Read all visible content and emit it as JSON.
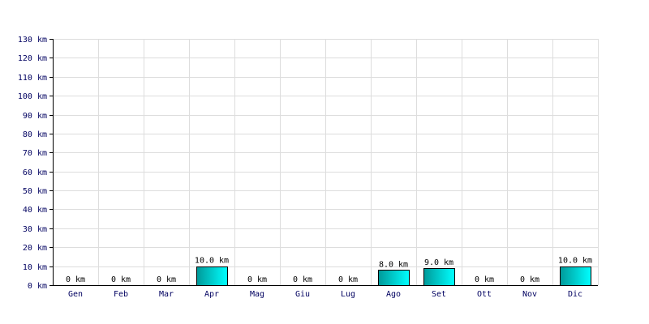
{
  "chart_data": {
    "type": "bar",
    "categories": [
      "Gen",
      "Feb",
      "Mar",
      "Apr",
      "Mag",
      "Giu",
      "Lug",
      "Ago",
      "Set",
      "Ott",
      "Nov",
      "Dic"
    ],
    "values": [
      0,
      0,
      0,
      10.0,
      0,
      0,
      0,
      8.0,
      9.0,
      0,
      0,
      10.0
    ],
    "data_labels": [
      "0 km",
      "0 km",
      "0 km",
      "10.0 km",
      "0 km",
      "0 km",
      "0 km",
      "8.0 km",
      "9.0 km",
      "0 km",
      "0 km",
      "10.0 km"
    ],
    "y_ticks": [
      0,
      10,
      20,
      30,
      40,
      50,
      60,
      70,
      80,
      90,
      100,
      110,
      120,
      130
    ],
    "y_tick_labels": [
      "0 km",
      "10 km",
      "20 km",
      "30 km",
      "40 km",
      "50 km",
      "60 km",
      "70 km",
      "80 km",
      "90 km",
      "100 km",
      "110 km",
      "120 km",
      "130 km"
    ],
    "ylim": [
      0,
      130
    ],
    "grid": true,
    "colors": {
      "bar_dark": "#009999",
      "bar_light": "#00ffff",
      "bar_outline": "#000000",
      "grid": "#dddddd",
      "axis": "#000000",
      "text": "#000060"
    }
  }
}
